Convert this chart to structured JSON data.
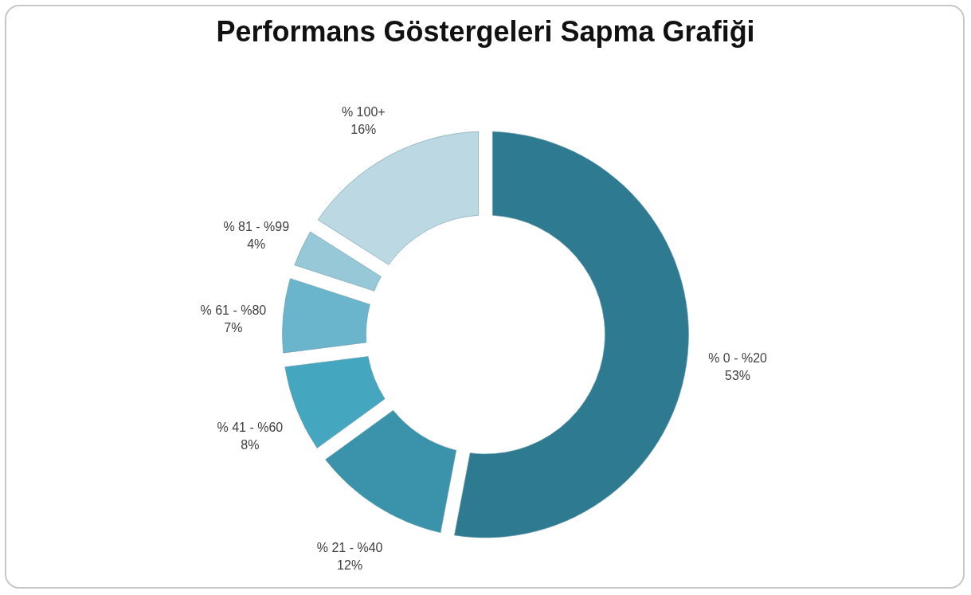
{
  "chart_data": {
    "type": "donut",
    "title": "Performans Göstergeleri Sapma Grafiği",
    "categories": [
      "% 0 - %20",
      "% 21 - %40",
      "% 41 - %60",
      "% 61 - %80",
      "% 81 - %99",
      "% 100+"
    ],
    "values": [
      53,
      12,
      8,
      7,
      4,
      16
    ],
    "value_labels": [
      "53%",
      "12%",
      "8%",
      "7%",
      "4%",
      "16%"
    ],
    "colors": [
      "#2e7a90",
      "#3a93ab",
      "#45a6c0",
      "#6ab5cb",
      "#97c8d7",
      "#bcd9e3"
    ],
    "legend": false
  }
}
